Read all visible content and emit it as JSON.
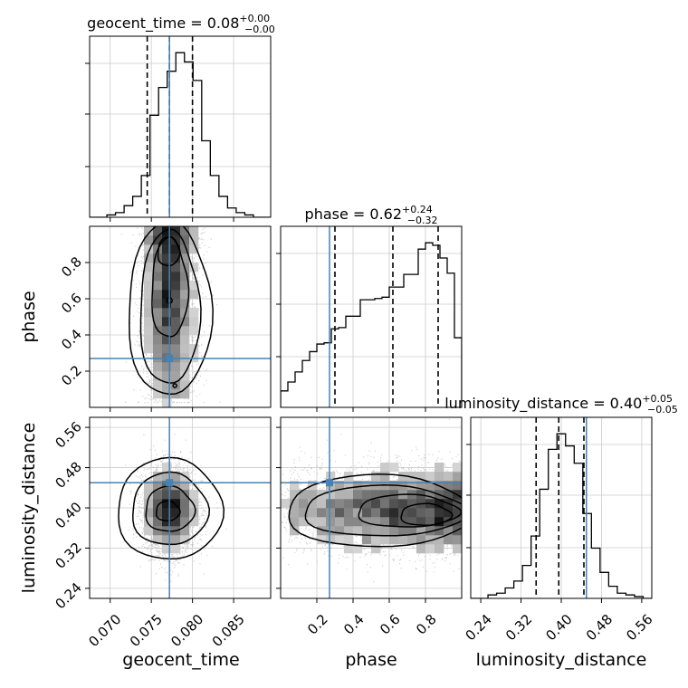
{
  "chart_data": {
    "type": "corner",
    "params": [
      "geocent_time",
      "phase",
      "luminosity_distance"
    ],
    "axis_labels": [
      "geocent_time",
      "phase",
      "luminosity_distance"
    ],
    "ranges": [
      [
        0.0675,
        0.0895
      ],
      [
        0.0,
        1.0
      ],
      [
        0.22,
        0.58
      ]
    ],
    "ticks": [
      [
        "0.070",
        "0.075",
        "0.080",
        "0.085"
      ],
      [
        "0.2",
        "0.4",
        "0.6",
        "0.8"
      ],
      [
        "0.24",
        "0.32",
        "0.40",
        "0.48",
        "0.56"
      ]
    ],
    "truths": [
      0.0772,
      0.27,
      0.45
    ],
    "titles": [
      {
        "name": "geocent_time",
        "median": "0.08",
        "plus": "+0.00",
        "minus": "−0.00"
      },
      {
        "name": "phase",
        "median": "0.62",
        "plus": "+0.24",
        "minus": "−0.32"
      },
      {
        "name": "luminosity_distance",
        "median": "0.40",
        "plus": "+0.05",
        "minus": "−0.05"
      }
    ],
    "quantiles": [
      [
        0.0745,
        0.0772,
        0.08
      ],
      [
        0.3,
        0.62,
        0.87
      ],
      [
        0.35,
        0.395,
        0.445
      ]
    ],
    "hist_geocent_time": [
      0,
      0,
      1,
      2,
      5,
      9,
      18,
      44,
      56,
      63,
      71,
      67,
      59,
      33,
      18,
      9,
      4,
      2,
      1,
      0,
      0
    ],
    "hist_phase": [
      13,
      20,
      28,
      37,
      44,
      50,
      51,
      62,
      63,
      72,
      72,
      85,
      85,
      86,
      87,
      95,
      95,
      105,
      105,
      125,
      130,
      128,
      118,
      106,
      55
    ],
    "hist_luminosity_distance": [
      0,
      0,
      2,
      3,
      6,
      10,
      19,
      36,
      63,
      86,
      95,
      88,
      78,
      49,
      29,
      15,
      7,
      3,
      2,
      1,
      0
    ],
    "colors": {
      "truth": "#4682b4",
      "hist": "#000000",
      "grid": "#cccccc",
      "density": "#000000"
    },
    "grid": true
  }
}
